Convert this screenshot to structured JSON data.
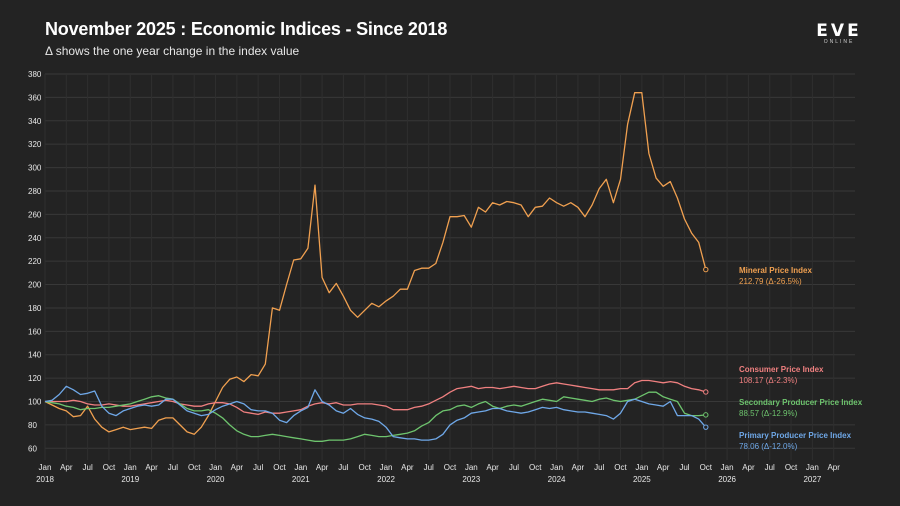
{
  "header": {
    "title": "November 2025 : Economic Indices - Since 2018",
    "subtitle": "Δ shows the one year change in the index value"
  },
  "logo": {
    "text": "EVE",
    "subtext": "ONLINE"
  },
  "chart_data": {
    "type": "line",
    "title": "November 2025 : Economic Indices - Since 2018",
    "subtitle": "Δ shows the one year change in the index value",
    "xlabel": "",
    "ylabel": "",
    "ylim": [
      50,
      380
    ],
    "yticks": [
      60,
      80,
      100,
      120,
      140,
      160,
      180,
      200,
      220,
      240,
      260,
      280,
      300,
      320,
      340,
      360,
      380
    ],
    "x_start": "2018-01",
    "x_end": "2027-06",
    "grid": true,
    "legend": "end-labels",
    "xticks": [
      {
        "m": "Jan",
        "y": "2018"
      },
      {
        "m": "Apr",
        "y": ""
      },
      {
        "m": "Jul",
        "y": ""
      },
      {
        "m": "Oct",
        "y": ""
      },
      {
        "m": "Jan",
        "y": "2019"
      },
      {
        "m": "Apr",
        "y": ""
      },
      {
        "m": "Jul",
        "y": ""
      },
      {
        "m": "Oct",
        "y": ""
      },
      {
        "m": "Jan",
        "y": "2020"
      },
      {
        "m": "Apr",
        "y": ""
      },
      {
        "m": "Jul",
        "y": ""
      },
      {
        "m": "Oct",
        "y": ""
      },
      {
        "m": "Jan",
        "y": "2021"
      },
      {
        "m": "Apr",
        "y": ""
      },
      {
        "m": "Jul",
        "y": ""
      },
      {
        "m": "Oct",
        "y": ""
      },
      {
        "m": "Jan",
        "y": "2022"
      },
      {
        "m": "Apr",
        "y": ""
      },
      {
        "m": "Jul",
        "y": ""
      },
      {
        "m": "Oct",
        "y": ""
      },
      {
        "m": "Jan",
        "y": "2023"
      },
      {
        "m": "Apr",
        "y": ""
      },
      {
        "m": "Jul",
        "y": ""
      },
      {
        "m": "Oct",
        "y": ""
      },
      {
        "m": "Jan",
        "y": "2024"
      },
      {
        "m": "Apr",
        "y": ""
      },
      {
        "m": "Jul",
        "y": ""
      },
      {
        "m": "Oct",
        "y": ""
      },
      {
        "m": "Jan",
        "y": "2025"
      },
      {
        "m": "Apr",
        "y": ""
      },
      {
        "m": "Jul",
        "y": ""
      },
      {
        "m": "Oct",
        "y": ""
      },
      {
        "m": "Jan",
        "y": "2026"
      },
      {
        "m": "Apr",
        "y": ""
      },
      {
        "m": "Jul",
        "y": ""
      },
      {
        "m": "Oct",
        "y": ""
      },
      {
        "m": "Jan",
        "y": "2027"
      },
      {
        "m": "Apr",
        "y": ""
      }
    ],
    "series": [
      {
        "name": "Mineral Price Index",
        "label_value": "212.79 (Δ-26.5%)",
        "color": "#f0a050",
        "values": [
          100,
          97,
          94,
          92,
          87,
          88,
          96,
          85,
          78,
          74,
          76,
          78,
          76,
          77,
          78,
          77,
          84,
          86,
          86,
          80,
          74,
          72,
          78,
          88,
          100,
          112,
          119,
          121,
          117,
          123,
          122,
          132,
          180,
          178,
          200,
          221,
          222,
          231,
          285,
          206,
          193,
          201,
          190,
          178,
          172,
          178,
          184,
          181,
          186,
          190,
          196,
          196,
          212,
          214,
          214,
          218,
          236,
          258,
          258,
          259,
          249,
          266,
          262,
          270,
          268,
          271,
          270,
          268,
          258,
          266,
          267,
          274,
          270,
          267,
          270,
          266,
          258,
          268,
          282,
          290,
          270,
          290,
          337,
          364,
          364,
          312,
          291,
          284,
          288,
          274,
          256,
          244,
          236,
          212.79
        ]
      },
      {
        "name": "Consumer Price Index",
        "label_value": "108.17 (Δ-2.3%)",
        "color": "#f08080",
        "values": [
          100,
          100,
          100,
          100,
          101,
          100,
          98,
          97,
          97,
          98,
          97,
          96,
          96,
          97,
          98,
          99,
          100,
          101,
          100,
          98,
          97,
          96,
          96,
          98,
          99,
          99,
          98,
          95,
          91,
          90,
          89,
          91,
          90,
          90,
          91,
          92,
          93,
          96,
          98,
          99,
          98,
          99,
          97,
          97,
          98,
          98,
          98,
          97,
          96,
          93,
          93,
          93,
          95,
          96,
          98,
          101,
          104,
          108,
          111,
          112,
          113,
          111,
          112,
          112,
          111,
          112,
          113,
          112,
          111,
          111,
          113,
          115,
          116,
          115,
          114,
          113,
          112,
          111,
          110,
          110,
          110,
          111,
          111,
          116,
          118,
          118,
          117,
          116,
          117,
          116,
          113,
          111,
          110,
          108.17
        ]
      },
      {
        "name": "Secondary Producer Price Index",
        "label_value": "88.57 (Δ-12.9%)",
        "color": "#6ec46e",
        "values": [
          100,
          99,
          98,
          96,
          95,
          93,
          94,
          94,
          95,
          95,
          96,
          97,
          98,
          100,
          102,
          104,
          105,
          103,
          102,
          98,
          94,
          92,
          92,
          93,
          90,
          86,
          80,
          75,
          72,
          70,
          70,
          71,
          72,
          71,
          70,
          69,
          68,
          67,
          66,
          66,
          67,
          67,
          67,
          68,
          70,
          72,
          71,
          70,
          70,
          71,
          72,
          73,
          75,
          79,
          82,
          88,
          92,
          93,
          96,
          97,
          95,
          98,
          100,
          96,
          94,
          96,
          97,
          96,
          98,
          100,
          102,
          101,
          100,
          104,
          103,
          102,
          101,
          100,
          102,
          103,
          101,
          100,
          101,
          102,
          105,
          108,
          108,
          104,
          102,
          100,
          90,
          88,
          88,
          88.57
        ]
      },
      {
        "name": "Primary Producer Price Index",
        "label_value": "78.06 (Δ-12.0%)",
        "color": "#6fa8e8",
        "values": [
          100,
          101,
          106,
          113,
          110,
          106,
          107,
          109,
          96,
          90,
          88,
          92,
          94,
          96,
          97,
          96,
          97,
          102,
          102,
          97,
          92,
          90,
          88,
          89,
          93,
          96,
          98,
          100,
          98,
          93,
          92,
          92,
          90,
          84,
          82,
          88,
          92,
          95,
          110,
          100,
          97,
          92,
          90,
          94,
          89,
          86,
          85,
          83,
          78,
          70,
          69,
          68,
          68,
          67,
          67,
          68,
          72,
          80,
          84,
          86,
          90,
          91,
          92,
          94,
          94,
          92,
          91,
          90,
          91,
          93,
          95,
          94,
          95,
          93,
          92,
          91,
          91,
          90,
          89,
          88,
          85,
          90,
          100,
          102,
          100,
          98,
          97,
          96,
          100,
          88,
          88,
          88,
          85,
          78.06
        ]
      }
    ]
  }
}
